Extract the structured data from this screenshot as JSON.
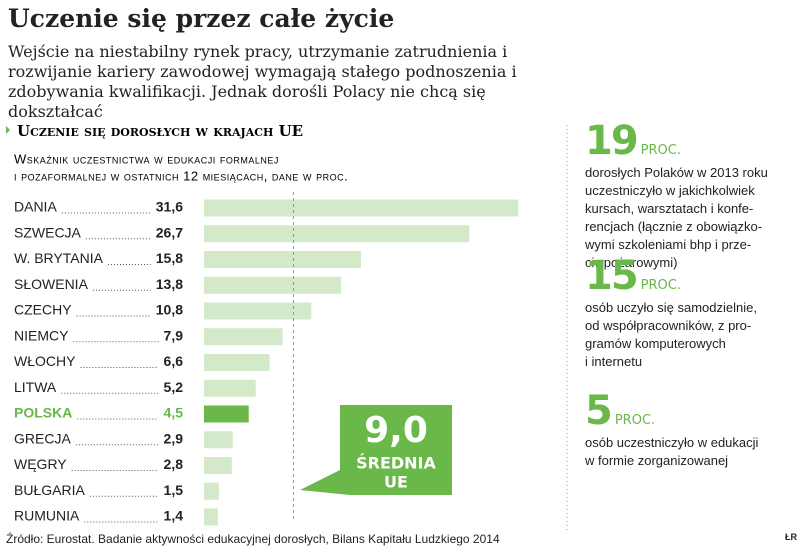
{
  "page_title": "Uczenie się przez całe życie",
  "lead": "Wejście na niestabilny rynek pracy, utrzymanie zatrudnienia i rozwijanie kariery zawodowej wymagają stałego podnoszenia i zdobywania kwalifikacji. Jednak dorośli Polacy nie chcą się dokształcać",
  "chart_data": {
    "type": "bar",
    "orientation": "horizontal",
    "title": "Uczenie się dorosłych w krajach UE",
    "subtitle": [
      "Wskaźnik uczestnictwa w edukacji formalnej",
      "i pozaformalnej w ostatnich 12 miesiącach, dane w proc."
    ],
    "categories": [
      "DANIA",
      "SZWECJA",
      "W. BRYTANIA",
      "SŁOWENIA",
      "CZECHY",
      "NIEMCY",
      "WŁOCHY",
      "LITWA",
      "POLSKA",
      "GRECJA",
      "WĘGRY",
      "BUŁGARIA",
      "RUMUNIA"
    ],
    "values": [
      31.6,
      26.7,
      15.8,
      13.8,
      10.8,
      7.9,
      6.6,
      5.2,
      4.5,
      2.9,
      2.8,
      1.5,
      1.4
    ],
    "value_labels": [
      "31,6",
      "26,7",
      "15,8",
      "13,8",
      "10,8",
      "7,9",
      "6,6",
      "5,2",
      "4,5",
      "2,9",
      "2,8",
      "1,5",
      "1,4"
    ],
    "color": "#d4e9c9",
    "highlight": {
      "index": 8,
      "color": "#6ab74a"
    },
    "xlim": [
      0,
      32
    ],
    "reference_line": {
      "value": 9.0,
      "label": "9,0",
      "text": [
        "ŚREDNIA",
        "UE"
      ],
      "color": "#6ab74a"
    }
  },
  "stats": [
    {
      "number": 19,
      "unit": "PROC.",
      "lines": [
        "dorosłych Polaków w 2013 roku",
        "uczestniczyło w jakichkolwiek",
        "kursach, warsztatach i konfe-",
        "rencjach (łącznie z obowiązko-",
        "wymi szkoleniami bhp i prze-",
        "ciwpożarowymi)"
      ]
    },
    {
      "number": 15,
      "unit": "PROC.",
      "lines": [
        "osób uczyło się samodzielnie,",
        "od współpracowników, z pro-",
        "gramów komputerowych",
        "i internetu"
      ]
    },
    {
      "number": 5,
      "unit": "PROC.",
      "lines": [
        "osób uczestniczyło w edukacji",
        "w formie zorganizowanej"
      ]
    }
  ],
  "source": "Źródło: Eurostat. Badanie aktywności edukacyjnej dorosłych, Bilans Kapitału Ludzkiego 2014",
  "credit": "ŁR"
}
